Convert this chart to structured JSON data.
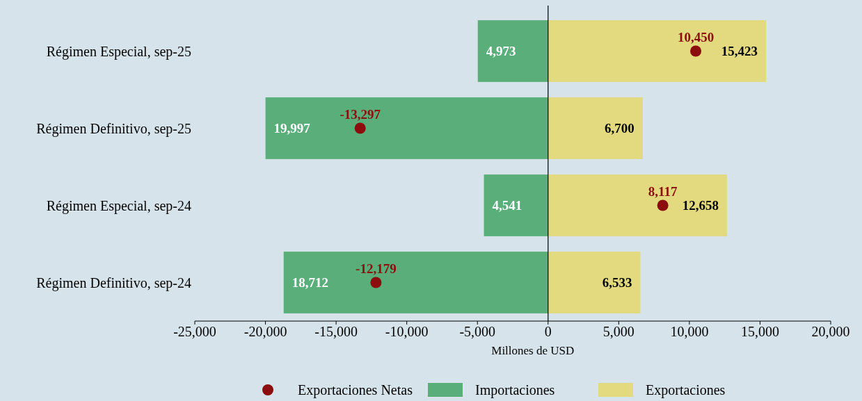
{
  "chart_data": {
    "type": "bar",
    "orientation": "horizontal",
    "xlabel": "Millones de USD",
    "ref_lines": [
      {
        "axis": "x",
        "value": 0,
        "color": "#000000"
      }
    ],
    "categories": [
      "Régimen Especial, sep-25",
      "Régimen Definitivo, sep-25",
      "Régimen Especial, sep-24",
      "Régimen Definitivo, sep-24"
    ],
    "series": [
      {
        "name": "Exportaciones Netas",
        "type": "scatter",
        "marker": "circle",
        "color": "#8b0d0d",
        "values": [
          10450,
          -13297,
          8117,
          -12179
        ],
        "value_labels": [
          "10,450",
          "-13,297",
          "8,117",
          "-12,179"
        ]
      },
      {
        "name": "Importaciones",
        "color": "#5aae7a",
        "base": [
          -4973,
          -19997,
          -4541,
          -18712
        ],
        "values": [
          4973,
          19997,
          4541,
          18712
        ],
        "value_labels": [
          "4,973",
          "19,997",
          "4,541",
          "18,712"
        ]
      },
      {
        "name": "Exportaciones",
        "color": "#e3d97e",
        "values": [
          15423,
          6700,
          12658,
          6533
        ],
        "value_labels": [
          "15,423",
          "6,700",
          "12,658",
          "6,533"
        ]
      }
    ],
    "xlim": [
      -25000,
      20000
    ],
    "xticks": [
      {
        "value": -25000,
        "label": "-25,000"
      },
      {
        "value": -20000,
        "label": "-20,000"
      },
      {
        "value": -15000,
        "label": "-15,000"
      },
      {
        "value": -10000,
        "label": "-10,000"
      },
      {
        "value": -5000,
        "label": "-5,000"
      },
      0,
      {
        "value": 5000,
        "label": "5,000"
      },
      {
        "value": 10000,
        "label": "10,000"
      },
      {
        "value": 15000,
        "label": "15,000"
      },
      {
        "value": 20000,
        "label": "20,000"
      }
    ],
    "grid": false,
    "legend": "bottom"
  }
}
